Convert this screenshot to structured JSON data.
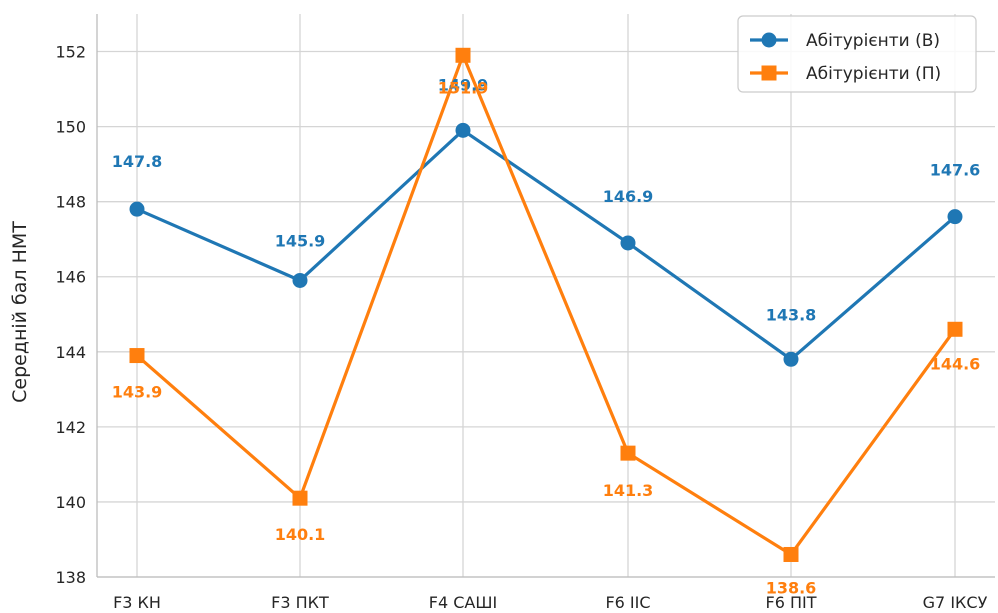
{
  "chart_data": {
    "type": "line",
    "categories": [
      "F3 КН",
      "F3 ПКТ",
      "F4 САШІ",
      "F6 ІІС",
      "F6 ПІТ",
      "G7 ІКСУ"
    ],
    "ylabel": "Середній бал НМТ",
    "ylim": [
      138,
      153
    ],
    "yticks": [
      138,
      140,
      142,
      144,
      146,
      148,
      150,
      152
    ],
    "grid": true,
    "legend_position": "top-right",
    "series": [
      {
        "name": "Абітурієнти (В)",
        "color": "#1f77b4",
        "marker": "circle",
        "values": [
          147.8,
          145.9,
          149.9,
          146.9,
          143.8,
          147.6
        ],
        "labels": [
          "147.8",
          "145.9",
          "149.9",
          "146.9",
          "143.8",
          "147.6"
        ]
      },
      {
        "name": "Абітурієнти (П)",
        "color": "#ff7f0e",
        "marker": "square",
        "values": [
          143.9,
          140.1,
          151.9,
          141.3,
          138.6,
          144.6
        ],
        "labels": [
          "143.9",
          "140.1",
          "151.9",
          "141.3",
          "138.6",
          "144.6"
        ]
      }
    ]
  }
}
